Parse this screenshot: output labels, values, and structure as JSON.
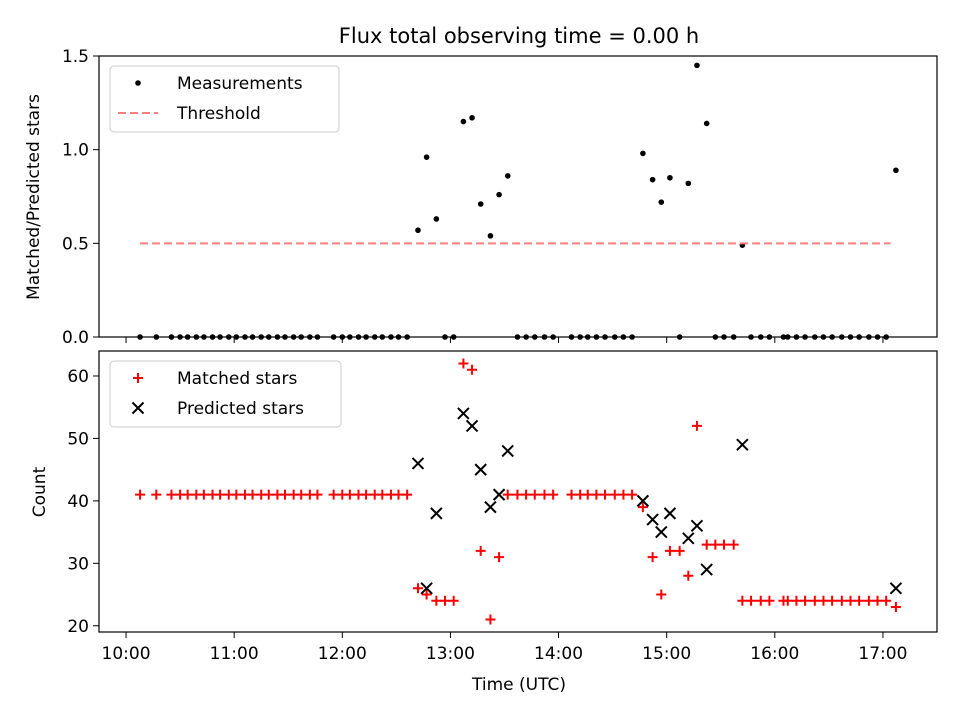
{
  "chart_data": [
    {
      "type": "scatter",
      "title": "Flux total observing time = 0.00 h",
      "xlabel": "",
      "ylabel": "Matched/Predicted stars",
      "ylim": [
        0,
        1.5
      ],
      "xlim_hours": [
        9.75,
        17.5
      ],
      "yticks": [
        0.0,
        0.5,
        1.0,
        1.5
      ],
      "ytick_labels": [
        "0.0",
        "0.5",
        "1.0",
        "1.5"
      ],
      "legend_position": "top-left",
      "series": [
        {
          "name": "Measurements",
          "kind": "points",
          "color": "#000000",
          "points": [
            [
              10.13,
              0
            ],
            [
              10.28,
              0
            ],
            [
              10.42,
              0
            ],
            [
              10.5,
              0
            ],
            [
              10.57,
              0
            ],
            [
              10.65,
              0
            ],
            [
              10.72,
              0
            ],
            [
              10.8,
              0
            ],
            [
              10.87,
              0
            ],
            [
              10.95,
              0
            ],
            [
              11.02,
              0
            ],
            [
              11.1,
              0
            ],
            [
              11.17,
              0
            ],
            [
              11.25,
              0
            ],
            [
              11.32,
              0
            ],
            [
              11.4,
              0
            ],
            [
              11.47,
              0
            ],
            [
              11.55,
              0
            ],
            [
              11.62,
              0
            ],
            [
              11.7,
              0
            ],
            [
              11.77,
              0
            ],
            [
              11.92,
              0
            ],
            [
              12.0,
              0
            ],
            [
              12.07,
              0
            ],
            [
              12.15,
              0
            ],
            [
              12.22,
              0
            ],
            [
              12.3,
              0
            ],
            [
              12.37,
              0
            ],
            [
              12.45,
              0
            ],
            [
              12.52,
              0
            ],
            [
              12.6,
              0
            ],
            [
              12.7,
              0.57
            ],
            [
              12.78,
              0.96
            ],
            [
              12.87,
              0.63
            ],
            [
              12.95,
              0
            ],
            [
              13.03,
              0
            ],
            [
              13.12,
              1.15
            ],
            [
              13.2,
              1.17
            ],
            [
              13.28,
              0.71
            ],
            [
              13.37,
              0.54
            ],
            [
              13.45,
              0.76
            ],
            [
              13.53,
              0.86
            ],
            [
              13.62,
              0
            ],
            [
              13.7,
              0
            ],
            [
              13.78,
              0
            ],
            [
              13.87,
              0
            ],
            [
              13.95,
              0
            ],
            [
              14.12,
              0
            ],
            [
              14.2,
              0
            ],
            [
              14.27,
              0
            ],
            [
              14.35,
              0
            ],
            [
              14.43,
              0
            ],
            [
              14.52,
              0
            ],
            [
              14.6,
              0
            ],
            [
              14.68,
              0
            ],
            [
              14.78,
              0.98
            ],
            [
              14.87,
              0.84
            ],
            [
              14.95,
              0.72
            ],
            [
              15.03,
              0.85
            ],
            [
              15.12,
              0
            ],
            [
              15.2,
              0.82
            ],
            [
              15.28,
              1.45
            ],
            [
              15.37,
              1.14
            ],
            [
              15.45,
              0
            ],
            [
              15.53,
              0
            ],
            [
              15.62,
              0
            ],
            [
              15.7,
              0.49
            ],
            [
              15.78,
              0
            ],
            [
              15.87,
              0
            ],
            [
              15.95,
              0
            ],
            [
              16.08,
              0
            ],
            [
              16.12,
              0
            ],
            [
              16.2,
              0
            ],
            [
              16.28,
              0
            ],
            [
              16.37,
              0
            ],
            [
              16.45,
              0
            ],
            [
              16.53,
              0
            ],
            [
              16.62,
              0
            ],
            [
              16.7,
              0
            ],
            [
              16.78,
              0
            ],
            [
              16.87,
              0
            ],
            [
              16.95,
              0
            ],
            [
              17.03,
              0
            ],
            [
              17.12,
              0.89
            ]
          ]
        },
        {
          "name": "Threshold",
          "kind": "dashed-line",
          "color": "#ff7f7f",
          "y": 0.5,
          "x_range": [
            10.13,
            17.07
          ]
        }
      ]
    },
    {
      "type": "scatter",
      "title": "",
      "xlabel": "Time (UTC)",
      "ylabel": "Count",
      "ylim": [
        19,
        64
      ],
      "xlim_hours": [
        9.75,
        17.5
      ],
      "yticks": [
        20,
        30,
        40,
        50,
        60
      ],
      "ytick_labels": [
        "20",
        "30",
        "40",
        "50",
        "60"
      ],
      "xticks": [
        10,
        11,
        12,
        13,
        14,
        15,
        16,
        17
      ],
      "xtick_labels": [
        "10:00",
        "11:00",
        "12:00",
        "13:00",
        "14:00",
        "15:00",
        "16:00",
        "17:00"
      ],
      "legend_position": "top-left",
      "series": [
        {
          "name": "Matched stars",
          "marker": "plus",
          "color": "#ff0000",
          "points": [
            [
              10.13,
              41
            ],
            [
              10.28,
              41
            ],
            [
              10.42,
              41
            ],
            [
              10.5,
              41
            ],
            [
              10.57,
              41
            ],
            [
              10.65,
              41
            ],
            [
              10.72,
              41
            ],
            [
              10.8,
              41
            ],
            [
              10.87,
              41
            ],
            [
              10.95,
              41
            ],
            [
              11.02,
              41
            ],
            [
              11.1,
              41
            ],
            [
              11.17,
              41
            ],
            [
              11.25,
              41
            ],
            [
              11.32,
              41
            ],
            [
              11.4,
              41
            ],
            [
              11.47,
              41
            ],
            [
              11.55,
              41
            ],
            [
              11.62,
              41
            ],
            [
              11.7,
              41
            ],
            [
              11.77,
              41
            ],
            [
              11.92,
              41
            ],
            [
              12.0,
              41
            ],
            [
              12.07,
              41
            ],
            [
              12.15,
              41
            ],
            [
              12.22,
              41
            ],
            [
              12.3,
              41
            ],
            [
              12.37,
              41
            ],
            [
              12.45,
              41
            ],
            [
              12.52,
              41
            ],
            [
              12.6,
              41
            ],
            [
              12.7,
              26
            ],
            [
              12.78,
              25
            ],
            [
              12.87,
              24
            ],
            [
              12.95,
              24
            ],
            [
              13.03,
              24
            ],
            [
              13.12,
              62
            ],
            [
              13.2,
              61
            ],
            [
              13.28,
              32
            ],
            [
              13.37,
              21
            ],
            [
              13.45,
              31
            ],
            [
              13.53,
              41
            ],
            [
              13.62,
              41
            ],
            [
              13.7,
              41
            ],
            [
              13.78,
              41
            ],
            [
              13.87,
              41
            ],
            [
              13.95,
              41
            ],
            [
              14.12,
              41
            ],
            [
              14.2,
              41
            ],
            [
              14.27,
              41
            ],
            [
              14.35,
              41
            ],
            [
              14.43,
              41
            ],
            [
              14.52,
              41
            ],
            [
              14.6,
              41
            ],
            [
              14.68,
              41
            ],
            [
              14.78,
              39
            ],
            [
              14.87,
              31
            ],
            [
              14.95,
              25
            ],
            [
              15.03,
              32
            ],
            [
              15.12,
              32
            ],
            [
              15.2,
              28
            ],
            [
              15.28,
              52
            ],
            [
              15.37,
              33
            ],
            [
              15.45,
              33
            ],
            [
              15.53,
              33
            ],
            [
              15.62,
              33
            ],
            [
              15.7,
              24
            ],
            [
              15.78,
              24
            ],
            [
              15.87,
              24
            ],
            [
              15.95,
              24
            ],
            [
              16.08,
              24
            ],
            [
              16.12,
              24
            ],
            [
              16.2,
              24
            ],
            [
              16.28,
              24
            ],
            [
              16.37,
              24
            ],
            [
              16.45,
              24
            ],
            [
              16.53,
              24
            ],
            [
              16.62,
              24
            ],
            [
              16.7,
              24
            ],
            [
              16.78,
              24
            ],
            [
              16.87,
              24
            ],
            [
              16.95,
              24
            ],
            [
              17.03,
              24
            ],
            [
              17.12,
              23
            ]
          ]
        },
        {
          "name": "Predicted stars",
          "marker": "x",
          "color": "#000000",
          "points": [
            [
              12.7,
              46
            ],
            [
              12.78,
              26
            ],
            [
              12.87,
              38
            ],
            [
              13.12,
              54
            ],
            [
              13.2,
              52
            ],
            [
              13.28,
              45
            ],
            [
              13.37,
              39
            ],
            [
              13.45,
              41
            ],
            [
              13.53,
              48
            ],
            [
              14.78,
              40
            ],
            [
              14.87,
              37
            ],
            [
              14.95,
              35
            ],
            [
              15.03,
              38
            ],
            [
              15.2,
              34
            ],
            [
              15.28,
              36
            ],
            [
              15.37,
              29
            ],
            [
              15.7,
              49
            ],
            [
              17.12,
              26
            ]
          ]
        }
      ]
    }
  ]
}
